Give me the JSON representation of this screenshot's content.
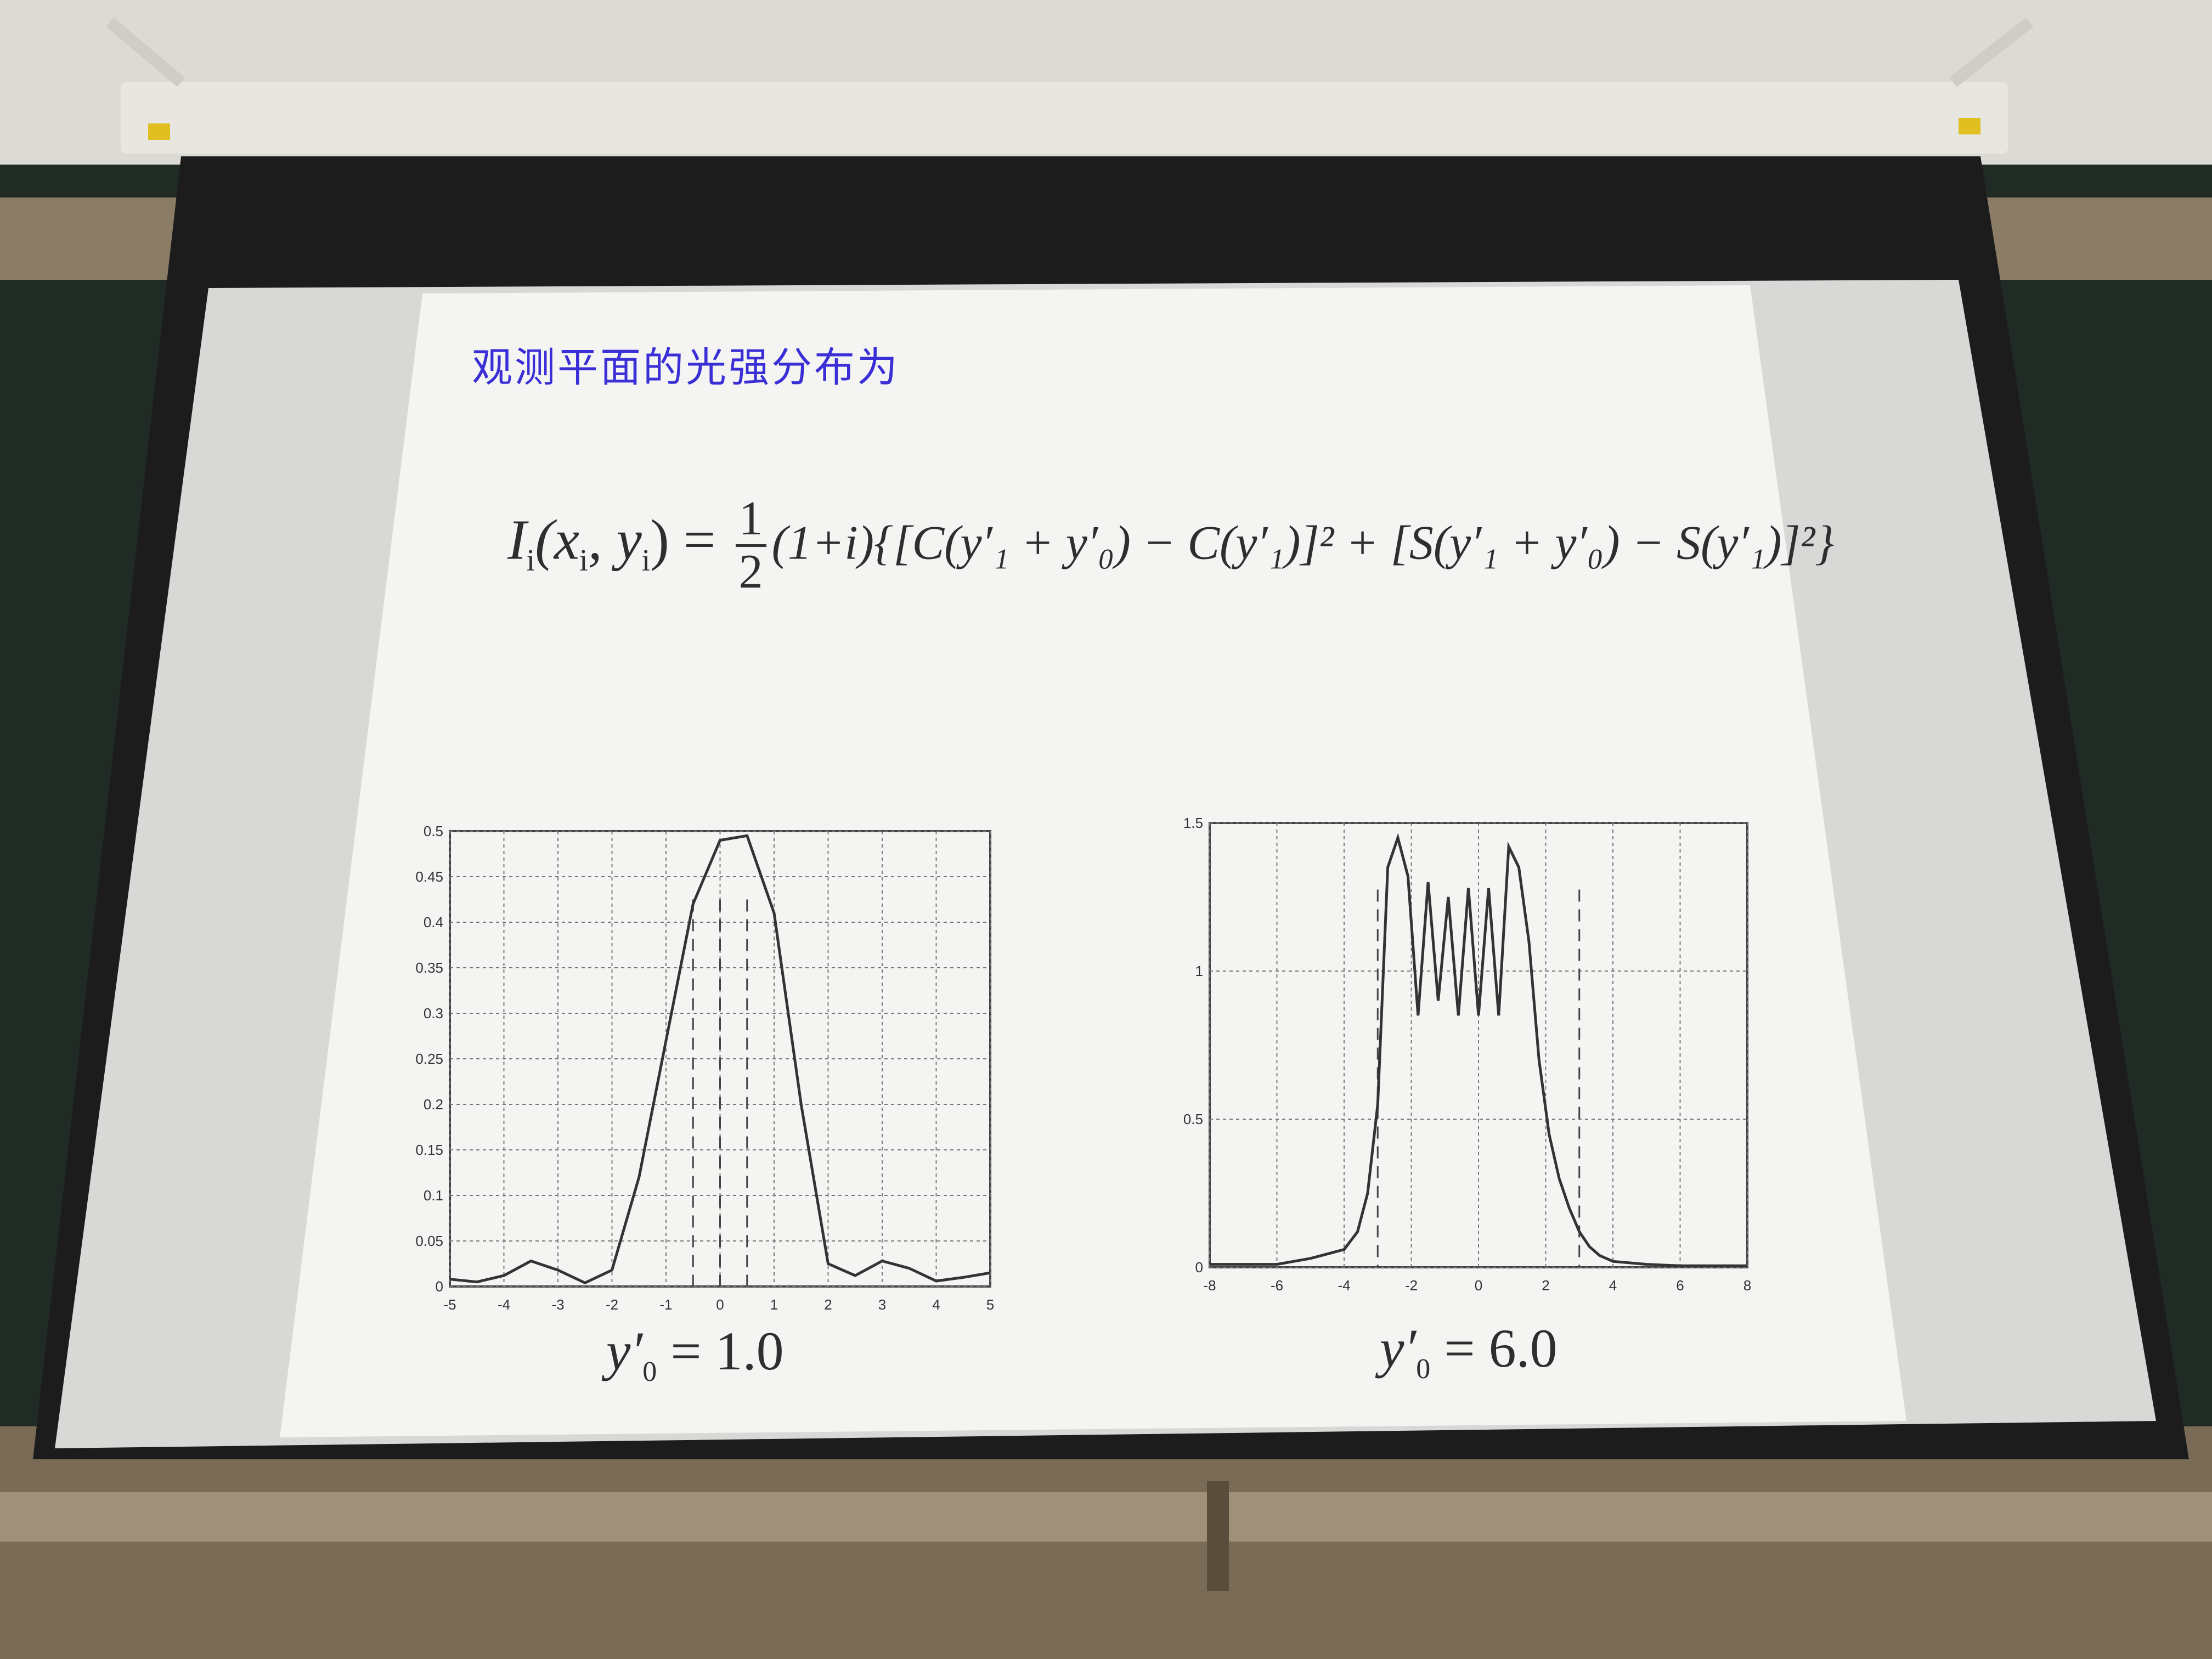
{
  "slide": {
    "title": "观测平面的光强分布为",
    "formula_lhs": "I",
    "formula_lhs_sub": "i",
    "formula_args": "(x",
    "formula_args_2": "i",
    "formula_args_3": ", y",
    "formula_args_4": "i",
    "formula_args_5": ") =",
    "formula_frac_num": "1",
    "formula_frac_den": "2",
    "formula_rest": "(1+i){[C(y′₁ + y′₀) − C(y′₁)]² + [S(y′₁ + y′₀) − S(y′₁)]²}"
  },
  "captions": {
    "left_var": "y′",
    "left_sub": "0",
    "left_value": " = 1.0",
    "right_var": "y′",
    "right_sub": "0",
    "right_value": " = 6.0"
  },
  "chart_data": [
    {
      "type": "line",
      "xlim": [
        -5,
        5
      ],
      "ylim": [
        0,
        0.5
      ],
      "x_ticks": [
        "-5",
        "-4",
        "-3",
        "-2",
        "-1",
        "0",
        "1",
        "2",
        "3",
        "4",
        "5"
      ],
      "y_ticks": [
        "0",
        "0.05",
        "0.1",
        "0.15",
        "0.2",
        "0.25",
        "0.3",
        "0.35",
        "0.4",
        "0.45",
        "0.5"
      ],
      "grid": true,
      "series": [
        {
          "x": [
            -5,
            -4.5,
            -4,
            -3.5,
            -3,
            -2.5,
            -2,
            -1.5,
            -1,
            -0.5,
            0,
            0.5,
            1,
            1.5,
            2,
            2.5,
            3,
            3.5,
            4,
            4.5,
            5
          ],
          "values": [
            0.008,
            0.005,
            0.012,
            0.028,
            0.018,
            0.004,
            0.018,
            0.12,
            0.27,
            0.42,
            0.49,
            0.495,
            0.41,
            0.2,
            0.025,
            0.012,
            0.028,
            0.02,
            0.006,
            0.01,
            0.015
          ]
        }
      ],
      "dashed_x": [
        -0.5,
        0,
        0.5
      ]
    },
    {
      "type": "line",
      "xlim": [
        -8,
        8
      ],
      "ylim": [
        0,
        1.5
      ],
      "x_ticks": [
        "-8",
        "-6",
        "-4",
        "-2",
        "0",
        "2",
        "4",
        "6",
        "8"
      ],
      "y_ticks": [
        "0",
        "0.5",
        "1",
        "1.5"
      ],
      "grid": true,
      "series": [
        {
          "x": [
            -8,
            -6,
            -5,
            -4,
            -3.6,
            -3.3,
            -3,
            -2.7,
            -2.4,
            -2.1,
            -1.8,
            -1.5,
            -1.2,
            -0.9,
            -0.6,
            -0.3,
            0,
            0.3,
            0.6,
            0.9,
            1.2,
            1.5,
            1.8,
            2.1,
            2.4,
            2.7,
            3,
            3.3,
            3.6,
            4,
            5,
            6,
            8
          ],
          "values": [
            0.01,
            0.01,
            0.03,
            0.06,
            0.12,
            0.25,
            0.55,
            1.35,
            1.45,
            1.32,
            0.85,
            1.3,
            0.9,
            1.25,
            0.85,
            1.28,
            0.85,
            1.28,
            0.85,
            1.42,
            1.35,
            1.1,
            0.7,
            0.45,
            0.3,
            0.2,
            0.12,
            0.07,
            0.04,
            0.02,
            0.01,
            0.005,
            0.005
          ]
        }
      ],
      "dashed_x": [
        -3,
        3
      ]
    }
  ]
}
